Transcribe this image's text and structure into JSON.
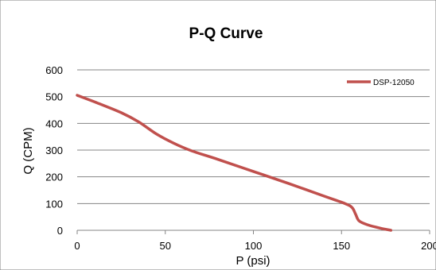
{
  "chart_data": {
    "type": "line",
    "title": "P-Q Curve",
    "xlabel": "P  (psi)",
    "ylabel": "Q (CPM)",
    "xlim": [
      0,
      200
    ],
    "ylim": [
      0,
      600
    ],
    "x_ticks": [
      "0",
      "50",
      "100",
      "150",
      "200"
    ],
    "y_ticks": [
      "0",
      "100",
      "200",
      "300",
      "400",
      "500",
      "600"
    ],
    "grid": "horizontal",
    "legend_position": "top-right",
    "series": [
      {
        "name": "DSP-12050",
        "color": "#c0504d",
        "x": [
          0,
          10,
          25,
          35,
          45,
          55,
          65,
          80,
          100,
          120,
          140,
          152,
          156,
          158,
          160,
          165,
          172,
          178
        ],
        "y": [
          505,
          480,
          440,
          405,
          360,
          325,
          297,
          265,
          220,
          175,
          128,
          100,
          85,
          60,
          35,
          20,
          8,
          0
        ]
      }
    ]
  }
}
